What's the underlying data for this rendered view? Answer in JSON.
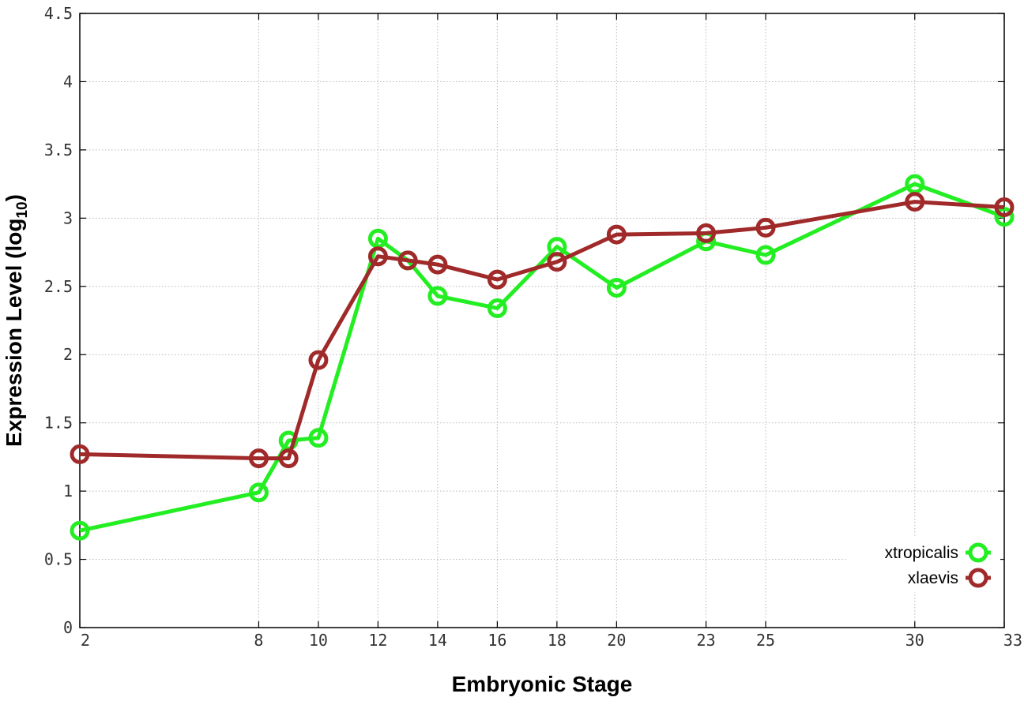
{
  "chart_data": {
    "type": "line",
    "xlabel": "Embryonic Stage",
    "ylabel_main": "Expression Level (log",
    "ylabel_sub": "10",
    "ylabel_close": ")",
    "x_ticks": [
      "2",
      "8",
      "10",
      "12",
      "14",
      "16",
      "18",
      "20",
      "23",
      "25",
      "30",
      "33"
    ],
    "y_ticks": [
      "0",
      "0.5",
      "1",
      "1.5",
      "2",
      "2.5",
      "3",
      "3.5",
      "4",
      "4.5"
    ],
    "ylim": [
      0,
      4.5
    ],
    "xlim": [
      2,
      33
    ],
    "grid": true,
    "legend_position": "bottom-right",
    "series": [
      {
        "name": "xtropicalis",
        "color": "#22ee22",
        "x": [
          2,
          8,
          9,
          10,
          12,
          13,
          14,
          16,
          18,
          20,
          23,
          25,
          30,
          33
        ],
        "y": [
          0.71,
          0.99,
          1.37,
          1.39,
          2.85,
          2.69,
          2.43,
          2.34,
          2.79,
          2.49,
          2.83,
          2.73,
          3.25,
          3.01
        ]
      },
      {
        "name": "xlaevis",
        "color": "#a02a2a",
        "x": [
          2,
          8,
          9,
          10,
          12,
          13,
          14,
          16,
          18,
          20,
          23,
          25,
          30,
          33
        ],
        "y": [
          1.27,
          1.24,
          1.24,
          1.96,
          2.72,
          2.69,
          2.66,
          2.55,
          2.68,
          2.88,
          2.89,
          2.93,
          3.12,
          3.08
        ]
      }
    ]
  }
}
